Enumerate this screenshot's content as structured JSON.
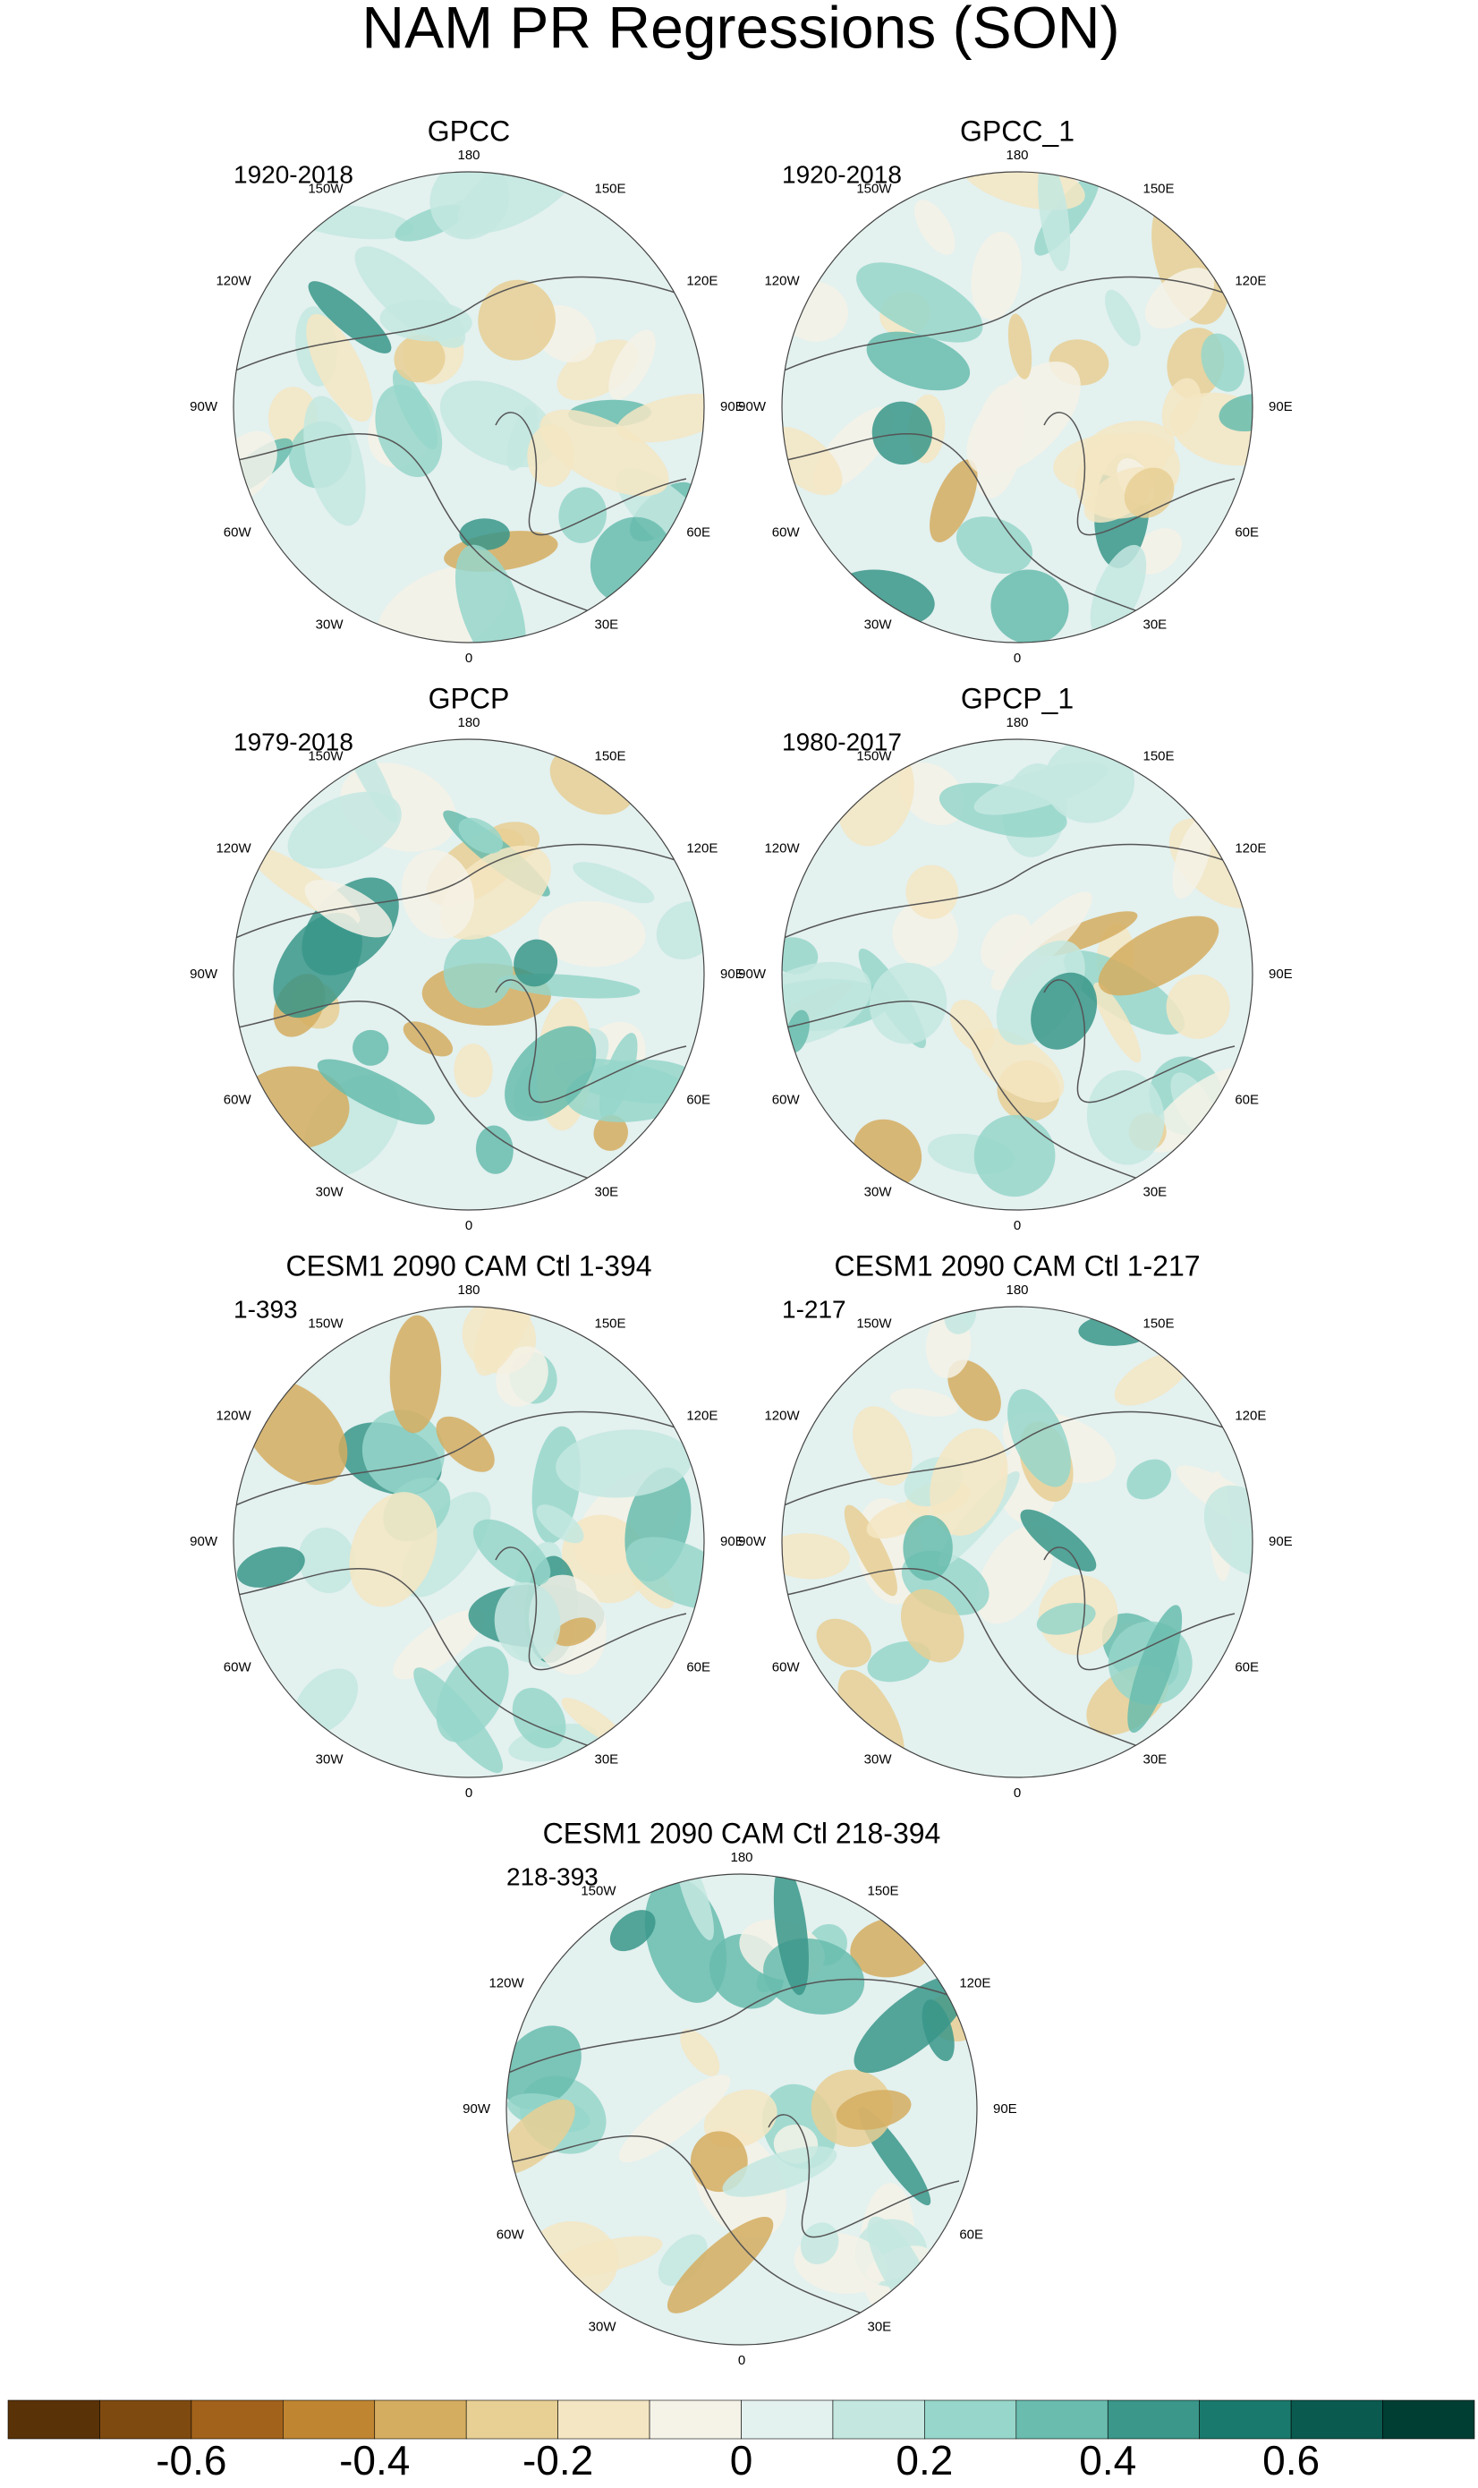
{
  "title": "NAM PR Regressions (SON)",
  "lon_labels": [
    "180",
    "150E",
    "120E",
    "90E",
    "60E",
    "30E",
    "0",
    "30W",
    "60W",
    "90W",
    "120W",
    "150W"
  ],
  "panels": [
    {
      "title": "GPCC",
      "period": "1920-2018"
    },
    {
      "title": "GPCC_1",
      "period": "1920-2018"
    },
    {
      "title": "GPCP",
      "period": "1979-2018"
    },
    {
      "title": "GPCP_1",
      "period": "1980-2017"
    },
    {
      "title": "CESM1 2090 CAM Ctl 1-394",
      "period": "1-393"
    },
    {
      "title": "CESM1 2090 CAM Ctl 1-217",
      "period": "1-217"
    },
    {
      "title": "CESM1 2090 CAM Ctl 218-394",
      "period": "218-393"
    }
  ],
  "colorbar": {
    "lim": [
      -0.8,
      0.8
    ],
    "ticks": [
      -0.6,
      -0.4,
      -0.2,
      0,
      0.2,
      0.4,
      0.6
    ],
    "colors": [
      "#5a3208",
      "#7f4a10",
      "#a3621b",
      "#c08531",
      "#d5ad60",
      "#e8cf94",
      "#f4e6c3",
      "#f5f2e8",
      "#e3f1ef",
      "#c4e8e0",
      "#97d6ca",
      "#69bcae",
      "#3a978a",
      "#19796c",
      "#0a5a4f",
      "#003d33"
    ]
  }
}
